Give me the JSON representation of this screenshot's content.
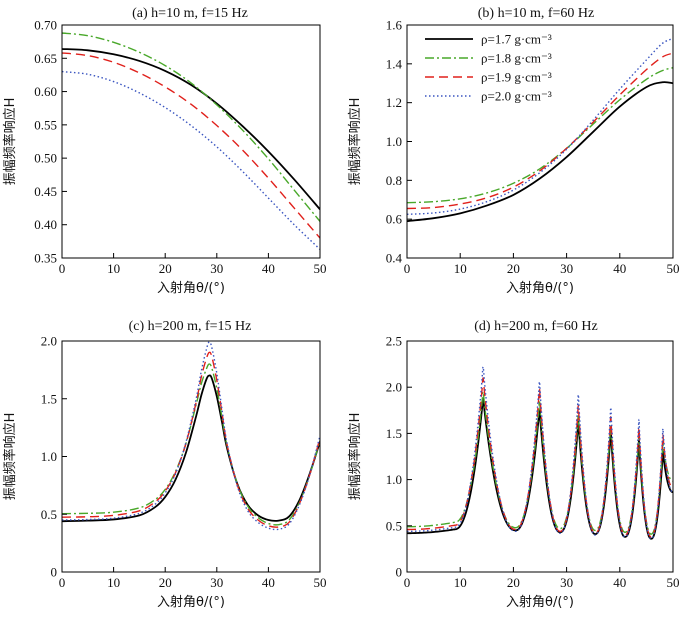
{
  "colors": {
    "rho_1_7": "#000000",
    "rho_1_8": "#49a82a",
    "rho_1_9": "#e0201b",
    "rho_2_0": "#3a55c0"
  },
  "chart_data": [
    {
      "type": "line",
      "title": "(a) h=10 m, f=15 Hz",
      "xlabel": "入射角θ/(°)",
      "ylabel": "振幅频率响应H",
      "xlim": [
        0,
        50
      ],
      "ylim": [
        0.35,
        0.7
      ],
      "xticks": [
        0,
        10,
        20,
        30,
        40,
        50
      ],
      "yticks": [
        0.35,
        0.4,
        0.45,
        0.5,
        0.55,
        0.6,
        0.65,
        0.7
      ],
      "xticklabels": [
        "0",
        "10",
        "20",
        "30",
        "40",
        "50"
      ],
      "yticklabels": [
        "0.35",
        "0.40",
        "0.45",
        "0.50",
        "0.55",
        "0.60",
        "0.65",
        "0.70"
      ],
      "x": [
        0,
        5,
        10,
        15,
        20,
        25,
        30,
        35,
        40,
        45,
        50
      ],
      "series": [
        {
          "name": "ρ=1.7 g·cm⁻³",
          "values": [
            0.664,
            0.662,
            0.656,
            0.646,
            0.631,
            0.61,
            0.582,
            0.548,
            0.51,
            0.468,
            0.423
          ]
        },
        {
          "name": "ρ=1.8 g·cm⁻³",
          "values": [
            0.688,
            0.684,
            0.674,
            0.659,
            0.639,
            0.613,
            0.58,
            0.542,
            0.499,
            0.452,
            0.405
          ]
        },
        {
          "name": "ρ=1.9 g·cm⁻³",
          "values": [
            0.658,
            0.654,
            0.644,
            0.628,
            0.607,
            0.581,
            0.549,
            0.512,
            0.47,
            0.425,
            0.38
          ]
        },
        {
          "name": "ρ=2.0 g·cm⁻³",
          "values": [
            0.63,
            0.626,
            0.615,
            0.598,
            0.576,
            0.549,
            0.517,
            0.48,
            0.44,
            0.4,
            0.363
          ]
        }
      ]
    },
    {
      "type": "line",
      "title": "(b) h=10 m, f=60 Hz",
      "xlabel": "入射角θ/(°)",
      "ylabel": "振幅频率响应H",
      "xlim": [
        0,
        50
      ],
      "ylim": [
        0.4,
        1.6
      ],
      "xticks": [
        0,
        10,
        20,
        30,
        40,
        50
      ],
      "yticks": [
        0.4,
        0.6,
        0.8,
        1.0,
        1.2,
        1.4,
        1.6
      ],
      "xticklabels": [
        "0",
        "10",
        "20",
        "30",
        "40",
        "50"
      ],
      "yticklabels": [
        "0.4",
        "0.6",
        "0.8",
        "1.0",
        "1.2",
        "1.4",
        "1.6"
      ],
      "legend": "top-left",
      "x": [
        0,
        5,
        10,
        15,
        20,
        25,
        30,
        35,
        40,
        45,
        48,
        50
      ],
      "series": [
        {
          "name": "ρ=1.7 g·cm⁻³",
          "values": [
            0.59,
            0.605,
            0.63,
            0.67,
            0.725,
            0.81,
            0.92,
            1.05,
            1.18,
            1.28,
            1.305,
            1.3
          ]
        },
        {
          "name": "ρ=1.8 g·cm⁻³",
          "values": [
            0.685,
            0.69,
            0.705,
            0.735,
            0.785,
            0.86,
            0.965,
            1.09,
            1.215,
            1.32,
            1.365,
            1.38
          ]
        },
        {
          "name": "ρ=1.9 g·cm⁻³",
          "values": [
            0.655,
            0.66,
            0.678,
            0.71,
            0.765,
            0.85,
            0.965,
            1.1,
            1.24,
            1.37,
            1.435,
            1.455
          ]
        },
        {
          "name": "ρ=2.0 g·cm⁻³",
          "values": [
            0.625,
            0.632,
            0.652,
            0.69,
            0.75,
            0.84,
            0.96,
            1.11,
            1.27,
            1.42,
            1.505,
            1.53
          ]
        }
      ]
    },
    {
      "type": "line",
      "title": "(c) h=200 m, f=15 Hz",
      "xlabel": "入射角θ/(°)",
      "ylabel": "振幅频率响应H",
      "xlim": [
        0,
        50
      ],
      "ylim": [
        0,
        2.0
      ],
      "xticks": [
        0,
        10,
        20,
        30,
        40,
        50
      ],
      "yticks": [
        0,
        0.5,
        1.0,
        1.5,
        2.0
      ],
      "xticklabels": [
        "0",
        "10",
        "20",
        "30",
        "40",
        "50"
      ],
      "yticklabels": [
        "0",
        "0.5",
        "1.0",
        "1.5",
        "2.0"
      ],
      "x": [
        0,
        5,
        10,
        15,
        18,
        20,
        22,
        24,
        26,
        27,
        28,
        28.5,
        29,
        30,
        31,
        32,
        34,
        36,
        38,
        40,
        42,
        44,
        46,
        48,
        50
      ],
      "series": [
        {
          "name": "ρ=1.7 g·cm⁻³",
          "values": [
            0.44,
            0.445,
            0.455,
            0.49,
            0.56,
            0.65,
            0.8,
            1.03,
            1.35,
            1.53,
            1.67,
            1.7,
            1.68,
            1.52,
            1.3,
            1.07,
            0.76,
            0.58,
            0.49,
            0.45,
            0.445,
            0.48,
            0.62,
            0.85,
            1.13
          ]
        },
        {
          "name": "ρ=1.8 g·cm⁻³",
          "values": [
            0.505,
            0.508,
            0.518,
            0.555,
            0.625,
            0.715,
            0.87,
            1.11,
            1.45,
            1.63,
            1.76,
            1.8,
            1.77,
            1.59,
            1.34,
            1.09,
            0.76,
            0.57,
            0.47,
            0.42,
            0.41,
            0.45,
            0.6,
            0.84,
            1.14
          ]
        },
        {
          "name": "ρ=1.9 g·cm⁻³",
          "values": [
            0.475,
            0.478,
            0.49,
            0.53,
            0.605,
            0.7,
            0.86,
            1.11,
            1.47,
            1.69,
            1.85,
            1.9,
            1.87,
            1.66,
            1.38,
            1.1,
            0.75,
            0.55,
            0.45,
            0.4,
            0.39,
            0.43,
            0.59,
            0.84,
            1.16
          ]
        },
        {
          "name": "ρ=2.0 g·cm⁻³",
          "values": [
            0.45,
            0.454,
            0.466,
            0.508,
            0.585,
            0.685,
            0.85,
            1.12,
            1.5,
            1.74,
            1.93,
            1.99,
            1.95,
            1.72,
            1.41,
            1.11,
            0.74,
            0.53,
            0.43,
            0.38,
            0.37,
            0.415,
            0.58,
            0.84,
            1.18
          ]
        }
      ]
    },
    {
      "type": "line",
      "title": "(d) h=200 m, f=60 Hz",
      "xlabel": "入射角θ/(°)",
      "ylabel": "振幅频率响应H",
      "xlim": [
        0,
        50
      ],
      "ylim": [
        0,
        2.5
      ],
      "xticks": [
        0,
        10,
        20,
        30,
        40,
        50
      ],
      "yticks": [
        0,
        0.5,
        1.0,
        1.5,
        2.0,
        2.5
      ],
      "xticklabels": [
        "0",
        "10",
        "20",
        "30",
        "40",
        "50"
      ],
      "yticklabels": [
        "0",
        "0.5",
        "1.0",
        "1.5",
        "2.0",
        "2.5"
      ],
      "peaks": [
        14.3,
        24.9,
        32.2,
        38.3,
        43.6,
        48.1
      ],
      "troughs": [
        20.4,
        28.8,
        35.4,
        41.0,
        45.9
      ],
      "series": [
        {
          "name": "ρ=1.7 g·cm⁻³",
          "peak_values": [
            1.88,
            1.76,
            1.63,
            1.52,
            1.42,
            1.3
          ],
          "trough_values": [
            0.45,
            0.43,
            0.41,
            0.38,
            0.36
          ],
          "start_value": 0.42
        },
        {
          "name": "ρ=1.8 g·cm⁻³",
          "peak_values": [
            1.95,
            1.85,
            1.7,
            1.6,
            1.48,
            1.4
          ],
          "trough_values": [
            0.48,
            0.47,
            0.45,
            0.43,
            0.41
          ],
          "start_value": 0.49
        },
        {
          "name": "ρ=1.9 g·cm⁻³",
          "peak_values": [
            2.1,
            1.98,
            1.8,
            1.68,
            1.56,
            1.48
          ],
          "trough_values": [
            0.46,
            0.44,
            0.42,
            0.4,
            0.38
          ],
          "start_value": 0.46
        },
        {
          "name": "ρ=2.0 g·cm⁻³",
          "peak_values": [
            2.22,
            2.06,
            1.92,
            1.78,
            1.65,
            1.55
          ],
          "trough_values": [
            0.44,
            0.42,
            0.4,
            0.38,
            0.36
          ],
          "start_value": 0.44
        }
      ]
    }
  ]
}
